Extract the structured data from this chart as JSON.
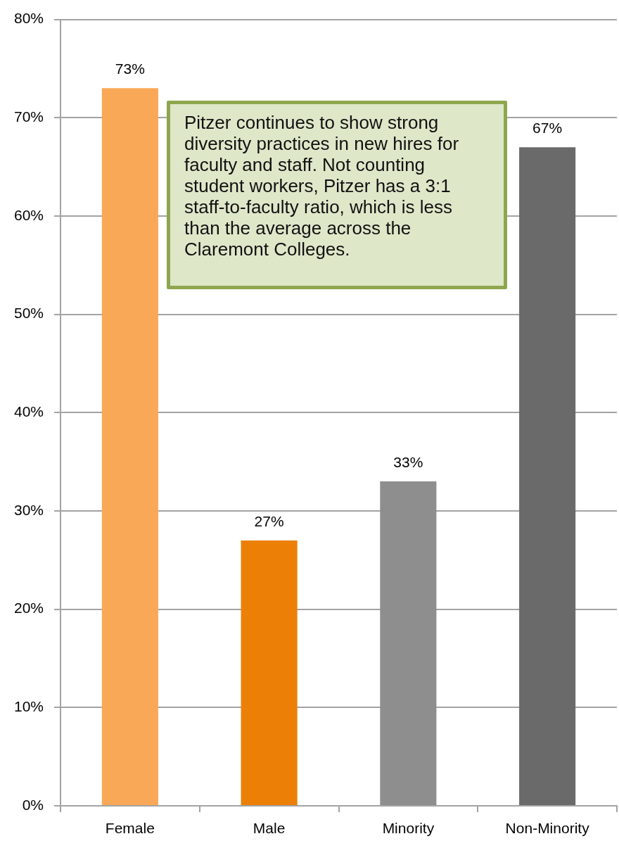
{
  "chart_data": {
    "type": "bar",
    "categories": [
      "Female",
      "Male",
      "Minority",
      "Non-Minority"
    ],
    "values": [
      73,
      27,
      33,
      67
    ],
    "colors": [
      "#f9a857",
      "#ec8006",
      "#8e8e8e",
      "#6a6a6a"
    ],
    "value_labels": [
      "73%",
      "27%",
      "33%",
      "67%"
    ],
    "ylim": [
      0,
      80
    ],
    "yticks": [
      {
        "value": 0,
        "label": "0%"
      },
      {
        "value": 10,
        "label": "10%"
      },
      {
        "value": 20,
        "label": "20%"
      },
      {
        "value": 30,
        "label": "30%"
      },
      {
        "value": 40,
        "label": "40%"
      },
      {
        "value": 50,
        "label": "50%"
      },
      {
        "value": 60,
        "label": "60%"
      },
      {
        "value": 70,
        "label": "70%"
      },
      {
        "value": 80,
        "label": "80%"
      }
    ],
    "grid": "y",
    "annotations": [
      "Pitzer continues to show strong diversity practices in new hires for faculty and staff. Not counting student workers, Pitzer has a 3:1 staff-to-faculty ratio, which is less than the average across the Claremont Colleges."
    ]
  }
}
